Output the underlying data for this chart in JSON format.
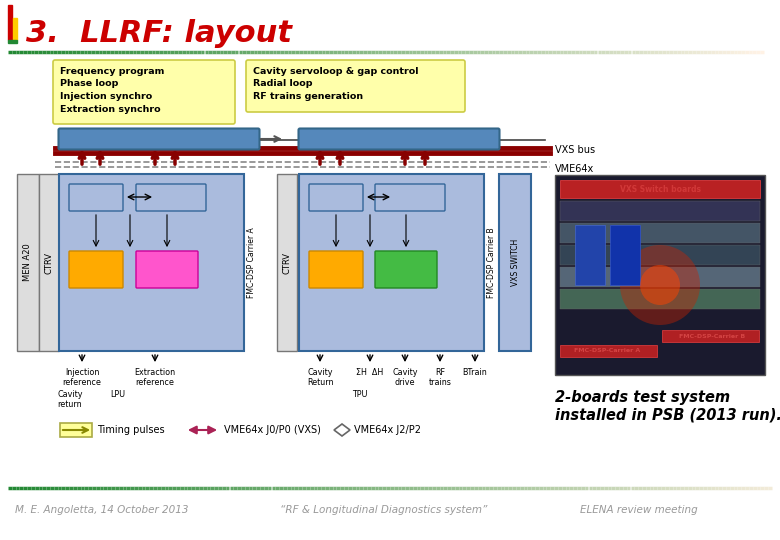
{
  "title": "3.  LLRF: layout",
  "title_color": "#cc0000",
  "bg_color": "#ffffff",
  "footer_line1": "M. E. Angoletta, 14 October 2013",
  "footer_line2": "“RF & Longitudinal Diagnostics system”",
  "footer_line3": "ELENA review meeting",
  "caption": "2-boards test system\ninstalled in PSB (2013 run).",
  "yellow_box1_text": "Frequency program\nPhase loop\nInjection synchro\nExtraction synchro",
  "yellow_box2_text": "Cavity servoloop & gap control\nRadial loop\nRF trains generation",
  "legend_timing": "Timing pulses",
  "legend_vme_vxs": "VME64x J0/P0 (VXS)",
  "legend_vme_j2": "VME64x J2/P2"
}
